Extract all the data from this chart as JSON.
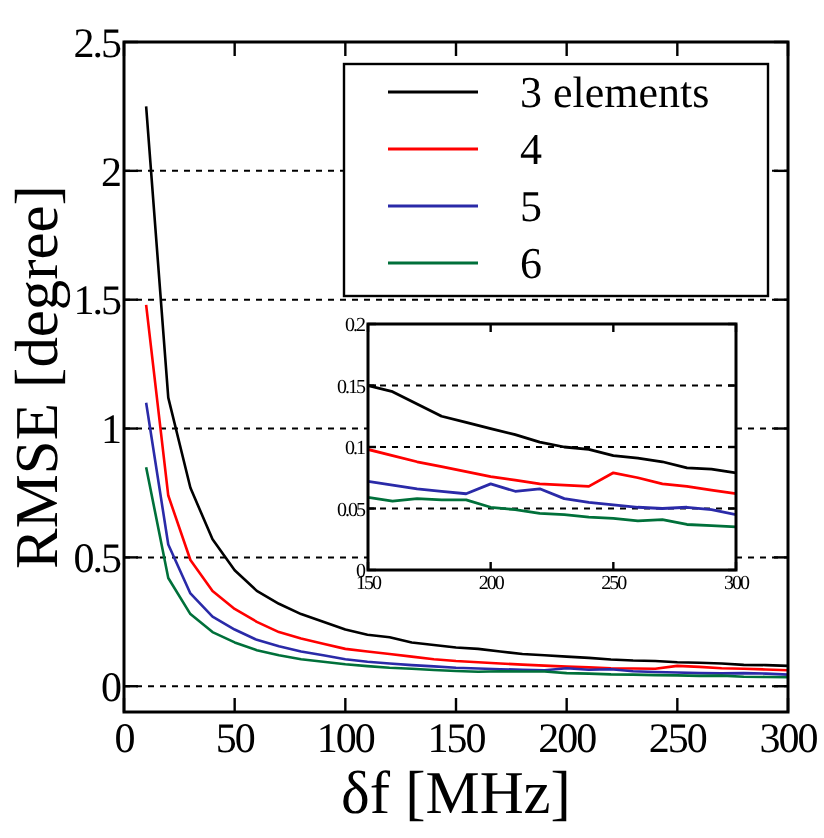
{
  "chart_data": [
    {
      "type": "line",
      "xlabel": "δf [MHz]",
      "ylabel": "RMSE [degree]",
      "x": [
        10,
        20,
        30,
        40,
        50,
        60,
        70,
        80,
        90,
        100,
        110,
        120,
        130,
        140,
        150,
        160,
        170,
        180,
        190,
        200,
        210,
        220,
        230,
        240,
        250,
        260,
        270,
        280,
        290,
        300
      ],
      "xlim": [
        0,
        300
      ],
      "xticks": [
        0,
        50,
        100,
        150,
        200,
        250,
        300
      ],
      "ylim": [
        -0.1,
        2.5
      ],
      "yticks": [
        0,
        0.5,
        1,
        1.5,
        2,
        2.5
      ],
      "grid": "y",
      "legend": "top right",
      "marker": "none",
      "line_style": "solid",
      "series": [
        {
          "name": "3 elements",
          "color": "#000000",
          "values": [
            2.25,
            1.12,
            0.77,
            0.57,
            0.45,
            0.37,
            0.32,
            0.28,
            0.25,
            0.22,
            0.2,
            0.19,
            0.17,
            0.16,
            0.15,
            0.145,
            0.135,
            0.125,
            0.12,
            0.115,
            0.11,
            0.104,
            0.1,
            0.098,
            0.093,
            0.091,
            0.088,
            0.083,
            0.082,
            0.079
          ]
        },
        {
          "name": "4",
          "color": "#ff0000",
          "values": [
            1.48,
            0.74,
            0.49,
            0.37,
            0.3,
            0.25,
            0.21,
            0.185,
            0.165,
            0.145,
            0.135,
            0.125,
            0.115,
            0.105,
            0.098,
            0.093,
            0.088,
            0.084,
            0.08,
            0.076,
            0.073,
            0.07,
            0.069,
            0.068,
            0.079,
            0.075,
            0.07,
            0.068,
            0.065,
            0.062
          ]
        },
        {
          "name": "5",
          "color": "#2a2aa8",
          "values": [
            1.1,
            0.55,
            0.36,
            0.27,
            0.22,
            0.18,
            0.155,
            0.135,
            0.12,
            0.105,
            0.095,
            0.088,
            0.082,
            0.077,
            0.072,
            0.069,
            0.066,
            0.064,
            0.062,
            0.07,
            0.064,
            0.066,
            0.058,
            0.055,
            0.053,
            0.051,
            0.05,
            0.051,
            0.049,
            0.045
          ]
        },
        {
          "name": "6",
          "color": "#00703a",
          "values": [
            0.85,
            0.42,
            0.28,
            0.21,
            0.17,
            0.14,
            0.12,
            0.105,
            0.095,
            0.085,
            0.078,
            0.072,
            0.068,
            0.063,
            0.059,
            0.056,
            0.058,
            0.057,
            0.057,
            0.051,
            0.049,
            0.046,
            0.045,
            0.043,
            0.042,
            0.04,
            0.041,
            0.037,
            0.036,
            0.035
          ]
        }
      ]
    },
    {
      "type": "line",
      "x": [
        150,
        160,
        170,
        180,
        190,
        200,
        210,
        220,
        230,
        240,
        250,
        260,
        270,
        280,
        290,
        300
      ],
      "xlim": [
        150,
        300
      ],
      "xticks": [
        150,
        200,
        250,
        300
      ],
      "ylim": [
        0,
        0.2
      ],
      "yticks": [
        0,
        0.05,
        0.1,
        0.15,
        0.2
      ],
      "grid": "y",
      "marker": "none",
      "line_style": "solid",
      "series": [
        {
          "color": "#000000",
          "values": [
            0.15,
            0.145,
            0.135,
            0.125,
            0.12,
            0.115,
            0.11,
            0.104,
            0.1,
            0.098,
            0.093,
            0.091,
            0.088,
            0.083,
            0.082,
            0.079
          ]
        },
        {
          "color": "#ff0000",
          "values": [
            0.098,
            0.093,
            0.088,
            0.084,
            0.08,
            0.076,
            0.073,
            0.07,
            0.069,
            0.068,
            0.079,
            0.075,
            0.07,
            0.068,
            0.065,
            0.062
          ]
        },
        {
          "color": "#2a2aa8",
          "values": [
            0.072,
            0.069,
            0.066,
            0.064,
            0.062,
            0.07,
            0.064,
            0.066,
            0.058,
            0.055,
            0.053,
            0.051,
            0.05,
            0.051,
            0.049,
            0.045
          ]
        },
        {
          "color": "#00703a",
          "values": [
            0.059,
            0.056,
            0.058,
            0.057,
            0.057,
            0.051,
            0.049,
            0.046,
            0.045,
            0.043,
            0.042,
            0.04,
            0.041,
            0.037,
            0.036,
            0.035
          ]
        }
      ]
    }
  ]
}
